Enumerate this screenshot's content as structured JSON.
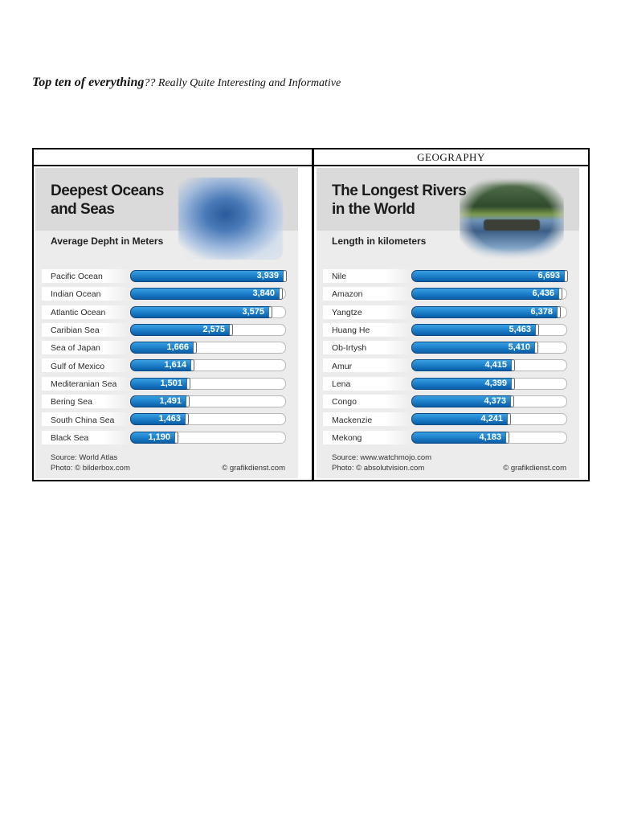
{
  "page": {
    "heading_bold": "Top ten of everything",
    "heading_rest": "?? Really Quite Interesting and Informative",
    "table_header_left": "",
    "table_header_right": "GEOGRAPHY"
  },
  "oceans": {
    "title_line1": "Deepest Oceans",
    "title_line2": "and Seas",
    "subtitle": "Average Depht in Meters",
    "source": "Source: World Atlas",
    "photo_credit": "Photo: © bilderbox.com",
    "graphic_credit": "© grafikdienst.com",
    "max": 3939,
    "items": [
      {
        "label": "Pacific Ocean",
        "value": 3939,
        "display": "3,939"
      },
      {
        "label": "Indian Ocean",
        "value": 3840,
        "display": "3,840"
      },
      {
        "label": "Atlantic Ocean",
        "value": 3575,
        "display": "3,575"
      },
      {
        "label": "Caribian Sea",
        "value": 2575,
        "display": "2,575"
      },
      {
        "label": "Sea of Japan",
        "value": 1666,
        "display": "1,666"
      },
      {
        "label": "Gulf of Mexico",
        "value": 1614,
        "display": "1,614"
      },
      {
        "label": "Mediteranian Sea",
        "value": 1501,
        "display": "1,501"
      },
      {
        "label": "Bering Sea",
        "value": 1491,
        "display": "1,491"
      },
      {
        "label": "South China Sea",
        "value": 1463,
        "display": "1,463"
      },
      {
        "label": "Black Sea",
        "value": 1190,
        "display": "1,190"
      }
    ]
  },
  "rivers": {
    "title_line1": "The Longest Rivers",
    "title_line2": "in the World",
    "subtitle": "Length in kilometers",
    "source": "Source: www.watchmojo.com",
    "photo_credit": "Photo: © absolutvision.com",
    "graphic_credit": "© grafikdienst.com",
    "max": 6693,
    "items": [
      {
        "label": "Nile",
        "value": 6693,
        "display": "6,693"
      },
      {
        "label": "Amazon",
        "value": 6436,
        "display": "6,436"
      },
      {
        "label": "Yangtze",
        "value": 6378,
        "display": "6,378"
      },
      {
        "label": "Huang He",
        "value": 5463,
        "display": "5,463"
      },
      {
        "label": "Ob-Irtysh",
        "value": 5410,
        "display": "5,410"
      },
      {
        "label": "Amur",
        "value": 4415,
        "display": "4,415"
      },
      {
        "label": "Lena",
        "value": 4399,
        "display": "4,399"
      },
      {
        "label": "Congo",
        "value": 4373,
        "display": "4,373"
      },
      {
        "label": "Mackenzie",
        "value": 4241,
        "display": "4,241"
      },
      {
        "label": "Mekong",
        "value": 4183,
        "display": "4,183"
      }
    ]
  },
  "colors": {
    "bar_fill": "#1f83cc",
    "bar_dark": "#0a5ea8",
    "panel_bg": "#ececec",
    "title_band": "#dadada"
  },
  "chart_data": [
    {
      "type": "bar",
      "orientation": "horizontal",
      "title": "Deepest Oceans and Seas",
      "subtitle": "Average Depht in Meters",
      "categories": [
        "Pacific Ocean",
        "Indian Ocean",
        "Atlantic Ocean",
        "Caribian Sea",
        "Sea of Japan",
        "Gulf of Mexico",
        "Mediteranian Sea",
        "Bering Sea",
        "South China Sea",
        "Black Sea"
      ],
      "values": [
        3939,
        3840,
        3575,
        2575,
        1666,
        1614,
        1501,
        1491,
        1463,
        1190
      ],
      "xlabel": "Average Depht in Meters",
      "ylabel": "",
      "grid": false,
      "data_labels": true,
      "annotations": [
        "Source: World Atlas",
        "Photo: © bilderbox.com",
        "© grafikdienst.com"
      ]
    },
    {
      "type": "bar",
      "orientation": "horizontal",
      "title": "The Longest Rivers in the World",
      "subtitle": "Length in kilometers",
      "categories": [
        "Nile",
        "Amazon",
        "Yangtze",
        "Huang He",
        "Ob-Irtysh",
        "Amur",
        "Lena",
        "Congo",
        "Mackenzie",
        "Mekong"
      ],
      "values": [
        6693,
        6436,
        6378,
        5463,
        5410,
        4415,
        4399,
        4373,
        4241,
        4183
      ],
      "xlabel": "Length in kilometers",
      "ylabel": "",
      "grid": false,
      "data_labels": true,
      "annotations": [
        "Source: www.watchmojo.com",
        "Photo: © absolutvision.com",
        "© grafikdienst.com"
      ]
    }
  ]
}
